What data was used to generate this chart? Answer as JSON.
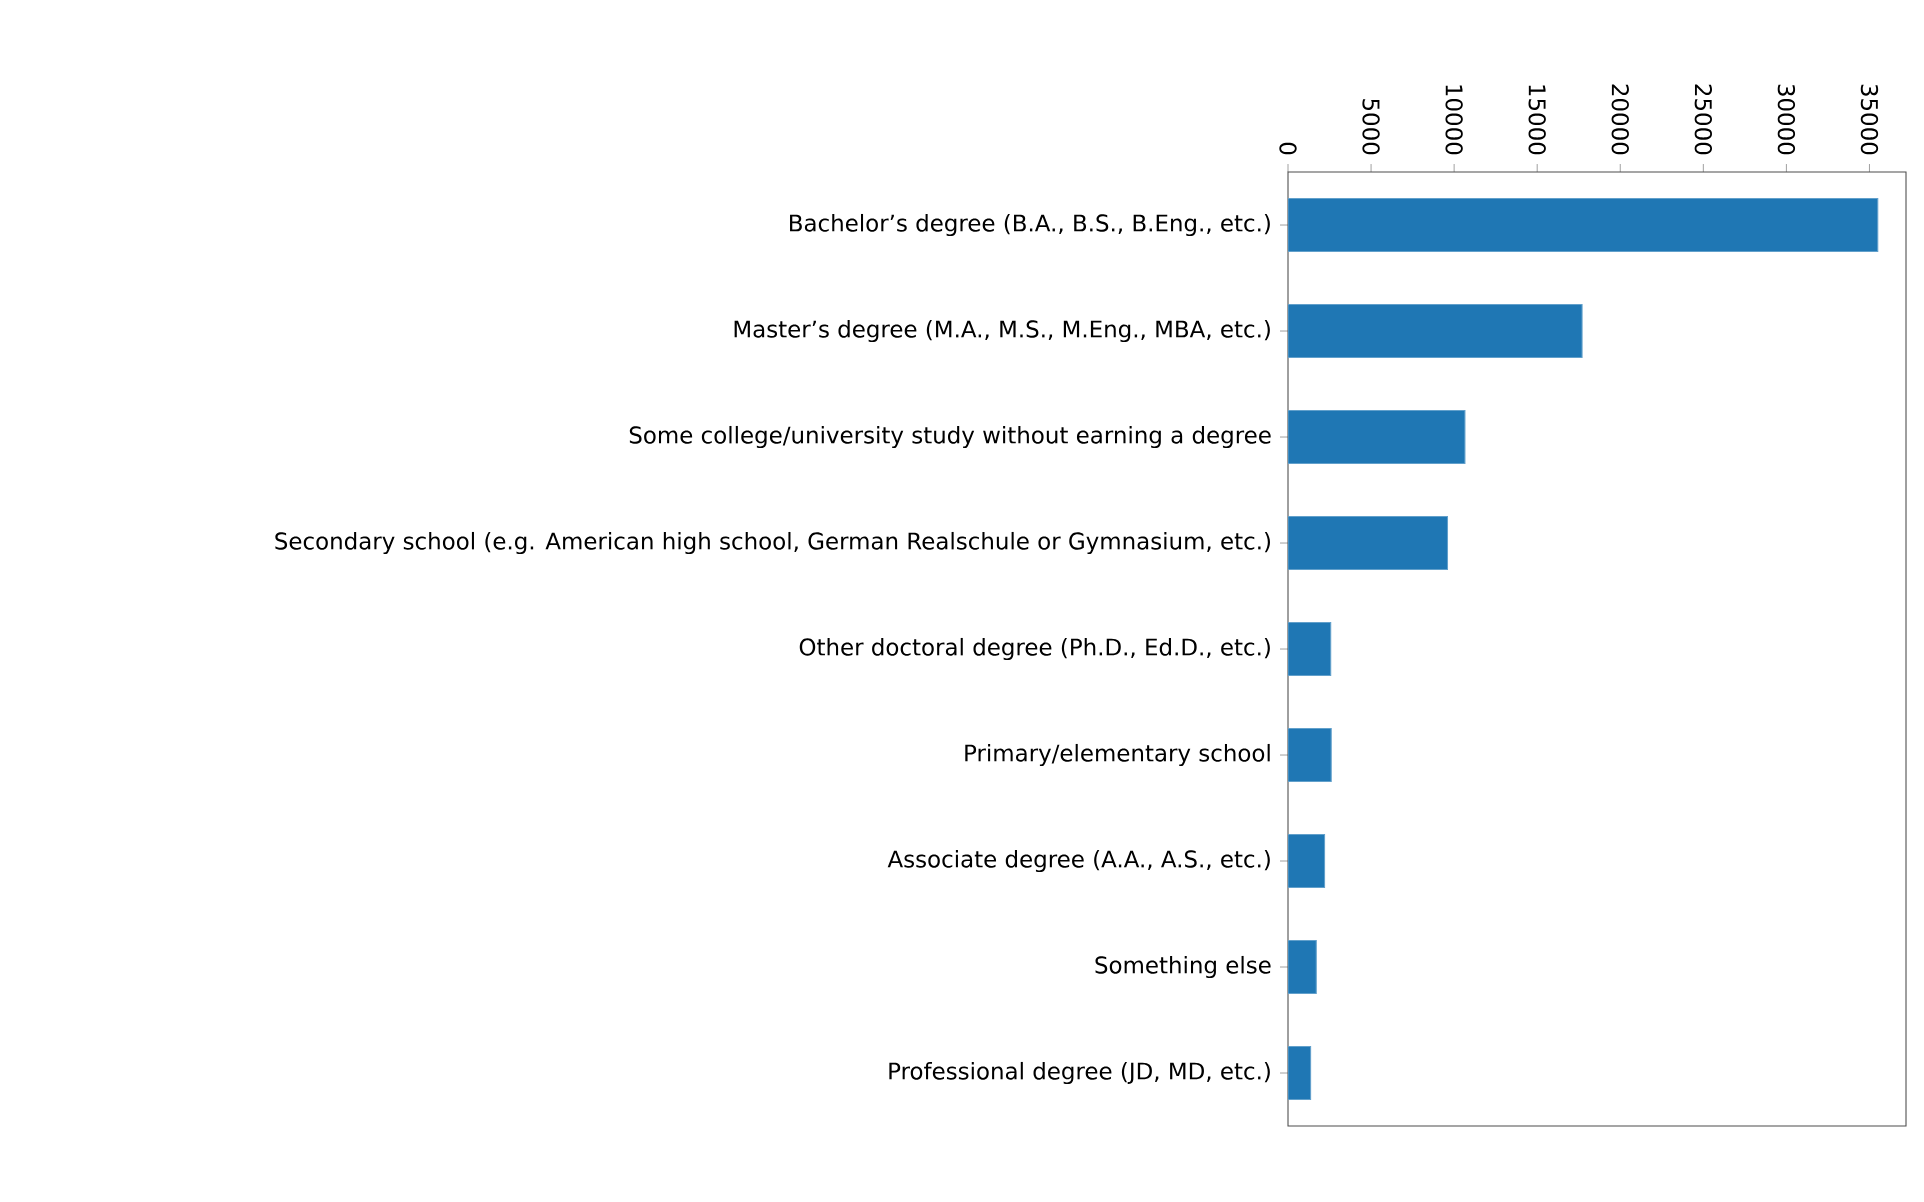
{
  "chart_data": {
    "type": "bar",
    "orientation": "horizontal",
    "categories": [
      "Bachelor’s degree (B.A., B.S., B.Eng., etc.)",
      "Master’s degree (M.A., M.S., M.Eng., MBA, etc.)",
      "Some college/university study without earning a degree",
      "Secondary school (e.g. American high school, German Realschule or Gymnasium, etc.)",
      "Other doctoral degree (Ph.D., Ed.D., etc.)",
      "Primary/elementary school",
      "Associate degree (A.A., A.S., etc.)",
      "Something else",
      "Professional degree (JD, MD, etc.)"
    ],
    "values": [
      35500,
      17700,
      10650,
      9600,
      2570,
      2600,
      2200,
      1700,
      1360
    ],
    "color": "#1f77b4",
    "xlim": [
      0,
      37200
    ],
    "xticks": [
      0,
      5000,
      10000,
      15000,
      20000,
      25000,
      30000,
      35000
    ]
  }
}
